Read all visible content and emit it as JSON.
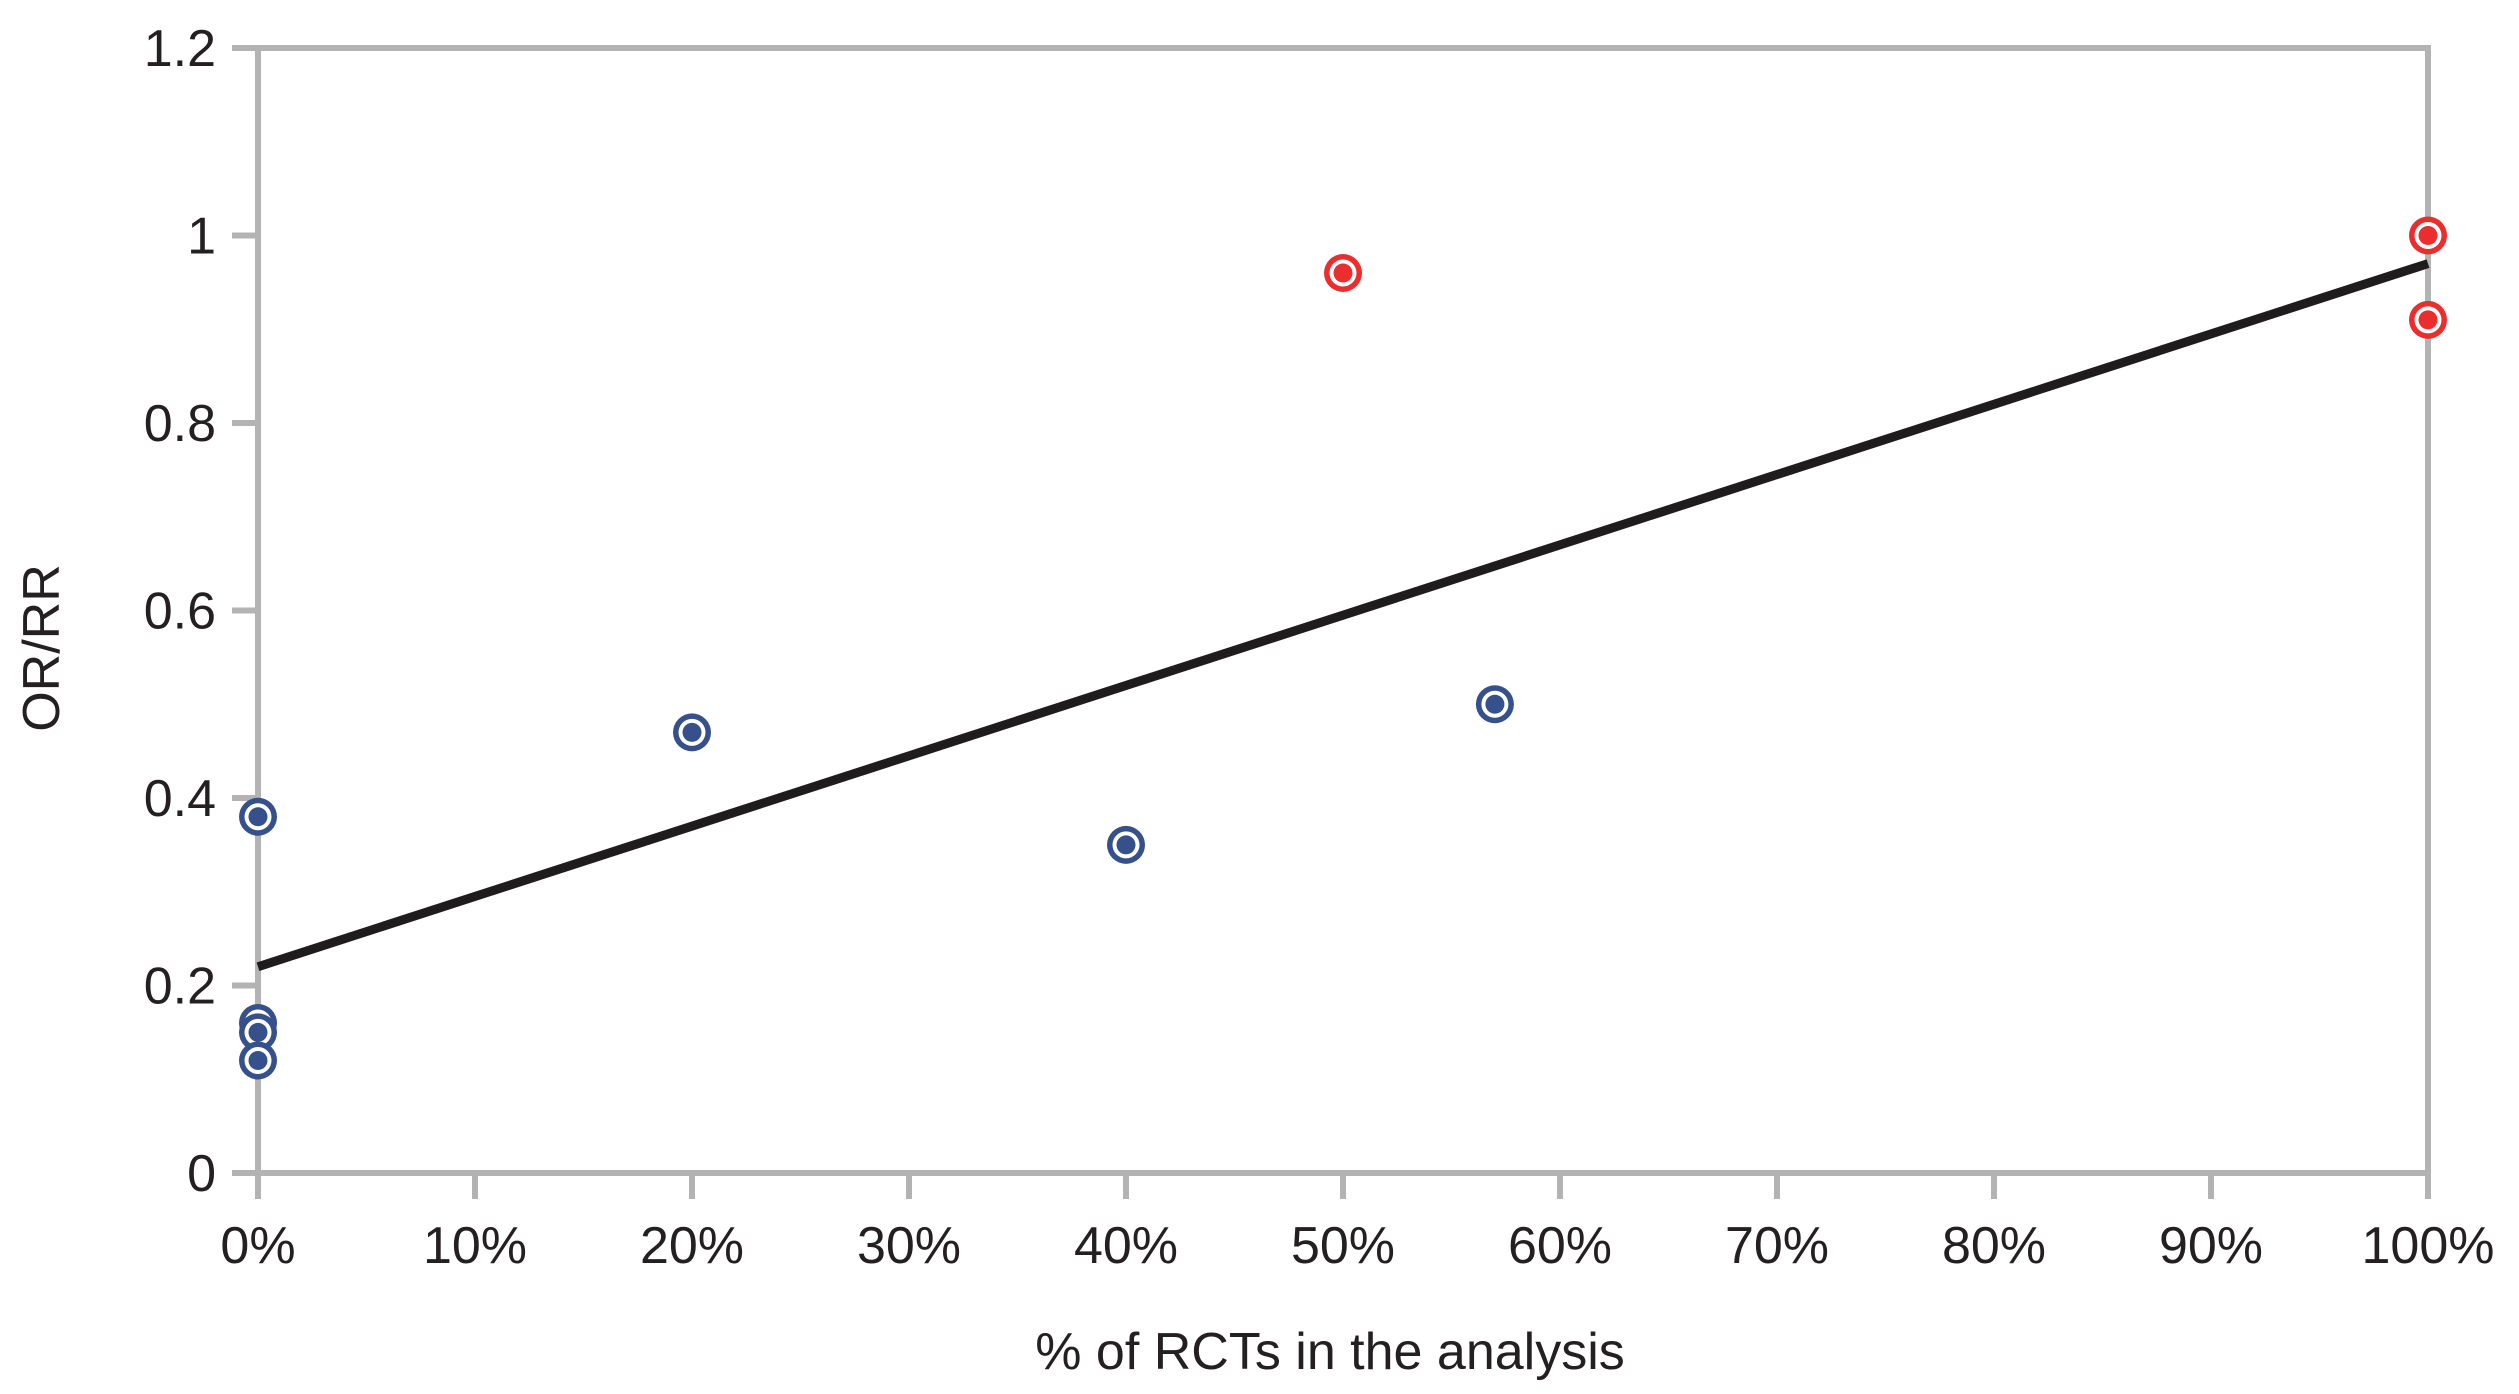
{
  "colors": {
    "axis": "#b3b3b3",
    "text": "#242021",
    "background": "#ffffff",
    "blue_marker": "#35508a",
    "red_marker": "#ec2d2d",
    "trend_line": "#1f1c1d"
  },
  "chart_data": {
    "type": "scatter",
    "title": "",
    "xlabel": "% of RCTs in the analysis",
    "ylabel": "OR/RR",
    "xlim": [
      0,
      100
    ],
    "ylim": [
      0,
      1.2
    ],
    "grid": false,
    "legend": null,
    "x_ticks": [
      0,
      10,
      20,
      30,
      40,
      50,
      60,
      70,
      80,
      90,
      100
    ],
    "x_tick_labels": [
      "0%",
      "10%",
      "20%",
      "30%",
      "40%",
      "50%",
      "60%",
      "70%",
      "80%",
      "90%",
      "100%"
    ],
    "y_ticks": [
      0,
      0.2,
      0.4,
      0.6,
      0.8,
      1,
      1.2
    ],
    "y_tick_labels": [
      "0",
      "0.2",
      "0.4",
      "0.6",
      "0.8",
      "1",
      "1.2"
    ],
    "series": [
      {
        "name": "blue-points",
        "color": "#35508a",
        "points": [
          [
            0,
            0.38
          ],
          [
            0,
            0.16
          ],
          [
            0,
            0.15
          ],
          [
            0,
            0.12
          ],
          [
            20,
            0.47
          ],
          [
            40,
            0.35
          ],
          [
            57,
            0.5
          ]
        ]
      },
      {
        "name": "red-points",
        "color": "#ec2d2d",
        "points": [
          [
            50,
            0.96
          ],
          [
            100,
            1.0
          ],
          [
            100,
            0.91
          ]
        ]
      }
    ],
    "trend_line": {
      "x1": 0,
      "y1": 0.22,
      "x2": 100,
      "y2": 0.97
    }
  }
}
